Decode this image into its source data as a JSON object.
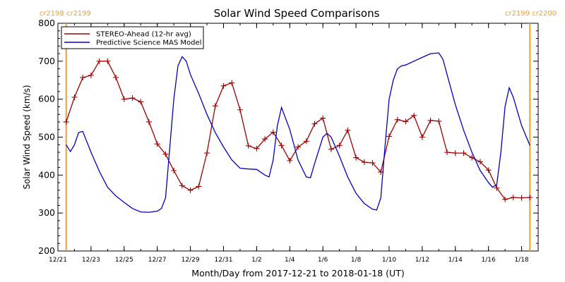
{
  "chart_data": {
    "type": "line",
    "title": "Solar Wind Speed Comparisons",
    "xlabel": "Month/Day from 2017-12-21 to 2018-01-18 (UT)",
    "ylabel": "Solar Wind Speed (km/s)",
    "xlim": [
      "2017-12-21",
      "2018-01-19"
    ],
    "ylim": [
      200,
      800
    ],
    "yticks": [
      200,
      300,
      400,
      500,
      600,
      700,
      800
    ],
    "xticks": [
      {
        "date": "2017-12-21",
        "label": "12/21"
      },
      {
        "date": "2017-12-23",
        "label": "12/23"
      },
      {
        "date": "2017-12-25",
        "label": "12/25"
      },
      {
        "date": "2017-12-27",
        "label": "12/27"
      },
      {
        "date": "2017-12-29",
        "label": "12/29"
      },
      {
        "date": "2017-12-31",
        "label": "12/31"
      },
      {
        "date": "2018-01-02",
        "label": "1/2"
      },
      {
        "date": "2018-01-04",
        "label": "1/4"
      },
      {
        "date": "2018-01-06",
        "label": "1/6"
      },
      {
        "date": "2018-01-08",
        "label": "1/8"
      },
      {
        "date": "2018-01-10",
        "label": "1/10"
      },
      {
        "date": "2018-01-12",
        "label": "1/12"
      },
      {
        "date": "2018-01-14",
        "label": "1/14"
      },
      {
        "date": "2018-01-16",
        "label": "1/16"
      },
      {
        "date": "2018-01-18",
        "label": "1/18"
      }
    ],
    "legend": {
      "placement": "top-left"
    },
    "markers": [
      {
        "date": "2017-12-21 12:00",
        "color": "#f0a030",
        "labels": [
          "cr2198",
          "cr2199"
        ],
        "label_side": "left"
      },
      {
        "date": "2018-01-18 12:00",
        "color": "#f0a030",
        "labels": [
          "cr2199",
          "cr2200"
        ],
        "label_side": "right"
      }
    ],
    "series": [
      {
        "name": "STEREO-Ahead (12-hr avg)",
        "color": "#a00000",
        "marker": "plus",
        "x": [
          "2017-12-21 12:00",
          "2017-12-22 00:00",
          "2017-12-22 12:00",
          "2017-12-23 00:00",
          "2017-12-23 12:00",
          "2017-12-24 00:00",
          "2017-12-24 12:00",
          "2017-12-25 00:00",
          "2017-12-25 12:00",
          "2017-12-26 00:00",
          "2017-12-26 12:00",
          "2017-12-27 00:00",
          "2017-12-27 12:00",
          "2017-12-28 00:00",
          "2017-12-28 12:00",
          "2017-12-29 00:00",
          "2017-12-29 12:00",
          "2017-12-30 00:00",
          "2017-12-30 12:00",
          "2017-12-31 00:00",
          "2017-12-31 12:00",
          "2018-01-01 00:00",
          "2018-01-01 12:00",
          "2018-01-02 00:00",
          "2018-01-02 12:00",
          "2018-01-03 00:00",
          "2018-01-03 12:00",
          "2018-01-04 00:00",
          "2018-01-04 12:00",
          "2018-01-05 00:00",
          "2018-01-05 12:00",
          "2018-01-06 00:00",
          "2018-01-06 12:00",
          "2018-01-07 00:00",
          "2018-01-07 12:00",
          "2018-01-08 00:00",
          "2018-01-08 12:00",
          "2018-01-09 00:00",
          "2018-01-09 12:00",
          "2018-01-10 00:00",
          "2018-01-10 12:00",
          "2018-01-11 00:00",
          "2018-01-11 12:00",
          "2018-01-12 00:00",
          "2018-01-12 12:00",
          "2018-01-13 00:00",
          "2018-01-13 12:00",
          "2018-01-14 00:00",
          "2018-01-14 12:00",
          "2018-01-15 00:00",
          "2018-01-15 12:00",
          "2018-01-16 00:00",
          "2018-01-16 12:00",
          "2018-01-17 00:00",
          "2018-01-17 12:00",
          "2018-01-18 00:00",
          "2018-01-18 12:00"
        ],
        "values": [
          540,
          605,
          657,
          663,
          700,
          700,
          657,
          600,
          603,
          593,
          540,
          482,
          455,
          412,
          372,
          360,
          370,
          458,
          582,
          635,
          643,
          572,
          477,
          470,
          495,
          513,
          478,
          438,
          474,
          489,
          535,
          550,
          468,
          478,
          518,
          446,
          434,
          432,
          408,
          502,
          546,
          541,
          557,
          500,
          544,
          542,
          460,
          458,
          458,
          446,
          435,
          413,
          366,
          336,
          341,
          340,
          341
        ]
      },
      {
        "name": "Predictive Science MAS Model",
        "color": "#0000c8",
        "marker": "none",
        "x": [
          "2017-12-21 12:00",
          "2017-12-21 18:00",
          "2017-12-22 00:00",
          "2017-12-22 06:00",
          "2017-12-22 12:00",
          "2017-12-23 00:00",
          "2017-12-23 12:00",
          "2017-12-24 00:00",
          "2017-12-24 12:00",
          "2017-12-25 00:00",
          "2017-12-25 12:00",
          "2017-12-26 00:00",
          "2017-12-26 12:00",
          "2017-12-27 00:00",
          "2017-12-27 06:00",
          "2017-12-27 12:00",
          "2017-12-27 18:00",
          "2017-12-28 00:00",
          "2017-12-28 06:00",
          "2017-12-28 12:00",
          "2017-12-28 18:00",
          "2017-12-29 00:00",
          "2017-12-29 12:00",
          "2017-12-30 00:00",
          "2017-12-30 12:00",
          "2017-12-31 00:00",
          "2017-12-31 12:00",
          "2018-01-01 00:00",
          "2018-01-01 12:00",
          "2018-01-02 00:00",
          "2018-01-02 12:00",
          "2018-01-02 18:00",
          "2018-01-03 00:00",
          "2018-01-03 06:00",
          "2018-01-03 12:00",
          "2018-01-04 00:00",
          "2018-01-04 12:00",
          "2018-01-05 00:00",
          "2018-01-05 06:00",
          "2018-01-05 12:00",
          "2018-01-06 00:00",
          "2018-01-06 06:00",
          "2018-01-06 12:00",
          "2018-01-07 00:00",
          "2018-01-07 12:00",
          "2018-01-08 00:00",
          "2018-01-08 12:00",
          "2018-01-09 00:00",
          "2018-01-09 06:00",
          "2018-01-09 12:00",
          "2018-01-09 18:00",
          "2018-01-10 00:00",
          "2018-01-10 06:00",
          "2018-01-10 12:00",
          "2018-01-10 18:00",
          "2018-01-11 00:00",
          "2018-01-11 12:00",
          "2018-01-12 00:00",
          "2018-01-12 12:00",
          "2018-01-13 00:00",
          "2018-01-13 06:00",
          "2018-01-13 12:00",
          "2018-01-14 00:00",
          "2018-01-14 12:00",
          "2018-01-15 00:00",
          "2018-01-15 12:00",
          "2018-01-16 00:00",
          "2018-01-16 06:00",
          "2018-01-16 12:00",
          "2018-01-16 18:00",
          "2018-01-17 00:00",
          "2018-01-17 06:00",
          "2018-01-17 12:00",
          "2018-01-18 00:00",
          "2018-01-18 12:00"
        ],
        "values": [
          480,
          462,
          480,
          512,
          515,
          460,
          410,
          368,
          345,
          328,
          312,
          303,
          302,
          305,
          312,
          340,
          470,
          600,
          688,
          712,
          700,
          665,
          615,
          560,
          512,
          474,
          440,
          418,
          416,
          415,
          400,
          395,
          440,
          530,
          578,
          520,
          440,
          395,
          393,
          430,
          500,
          510,
          500,
          450,
          395,
          352,
          325,
          310,
          308,
          340,
          475,
          600,
          650,
          680,
          688,
          690,
          700,
          710,
          720,
          722,
          705,
          665,
          585,
          518,
          460,
          412,
          380,
          368,
          375,
          460,
          580,
          630,
          605,
          530,
          478
        ]
      }
    ]
  }
}
